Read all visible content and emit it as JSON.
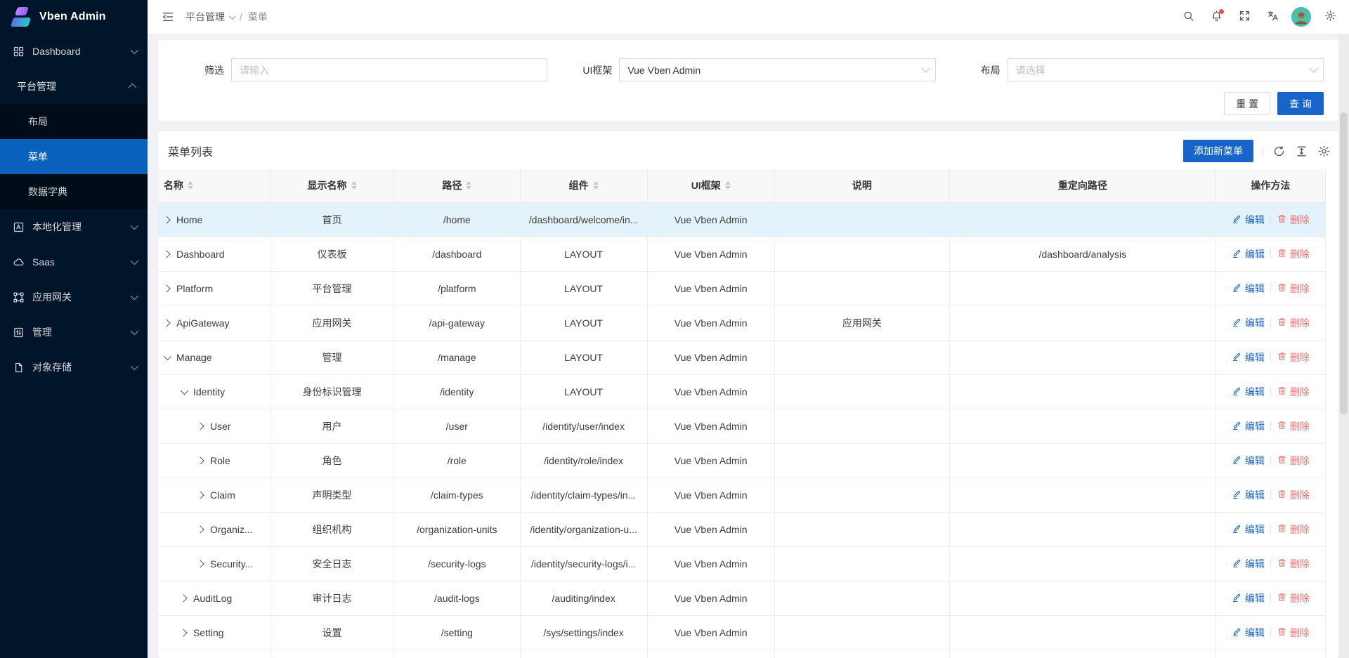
{
  "app": {
    "title": "Vben Admin"
  },
  "colors": {
    "primary": "#1765c9",
    "sidebar_bg": "#001529",
    "sidebar_submenu_bg": "#000c17",
    "sidebar_active": "#0960bd",
    "danger": "#ef6f6f",
    "notification_dot": "#f34d4d",
    "row_highlight": "#e4f2fb",
    "avatar_bg": "#49c0ad"
  },
  "sidebar": {
    "logo_text": "Vben Admin",
    "items": [
      {
        "label": "Dashboard",
        "icon": "grid-icon",
        "chevron": "down",
        "type": "top"
      },
      {
        "label": "平台管理",
        "chevron": "up",
        "type": "group"
      },
      {
        "label": "布局",
        "type": "sub"
      },
      {
        "label": "菜单",
        "type": "sub",
        "active": true
      },
      {
        "label": "数据字典",
        "type": "sub"
      },
      {
        "label": "本地化管理",
        "icon": "locale-icon",
        "chevron": "down",
        "type": "top"
      },
      {
        "label": "Saas",
        "icon": "cloud-icon",
        "chevron": "down",
        "type": "top"
      },
      {
        "label": "应用网关",
        "icon": "gateway-icon",
        "chevron": "down",
        "type": "top"
      },
      {
        "label": "管理",
        "icon": "sliders-icon",
        "chevron": "down",
        "type": "top"
      },
      {
        "label": "对象存储",
        "icon": "file-icon",
        "chevron": "down",
        "type": "top"
      }
    ]
  },
  "header": {
    "breadcrumb": [
      {
        "label": "平台管理",
        "caret": true
      },
      {
        "label": "菜单"
      }
    ],
    "separator": "/",
    "icons": [
      "search-icon",
      "bell-icon",
      "fullscreen-icon",
      "translate-icon",
      "avatar",
      "gear-icon"
    ],
    "notification_dot": true
  },
  "filter": {
    "fields": [
      {
        "label": "筛选",
        "type": "input",
        "value": "",
        "placeholder": "请输入"
      },
      {
        "label": "UI框架",
        "type": "select",
        "value": "Vue Vben Admin",
        "placeholder": ""
      },
      {
        "label": "布局",
        "type": "select",
        "value": "",
        "placeholder": "请选择"
      }
    ],
    "reset_label": "重 置",
    "search_label": "查 询"
  },
  "table": {
    "title": "菜单列表",
    "add_button_label": "添加新菜单",
    "toolbar_icons": [
      "refresh-icon",
      "row-height-icon",
      "gear-icon"
    ],
    "edit_label": "编辑",
    "delete_label": "删除",
    "columns": [
      {
        "label": "名称",
        "sortable": true
      },
      {
        "label": "显示名称",
        "sortable": true
      },
      {
        "label": "路径",
        "sortable": true
      },
      {
        "label": "组件",
        "sortable": true
      },
      {
        "label": "UI框架",
        "sortable": true
      },
      {
        "label": "说明",
        "sortable": false
      },
      {
        "label": "重定向路径",
        "sortable": false
      },
      {
        "label": "操作方法",
        "sortable": false
      }
    ],
    "rows": [
      {
        "name": "Home",
        "level": 0,
        "state": "collapsed",
        "display": "首页",
        "path": "/home",
        "component": "/dashboard/welcome/in...",
        "framework": "Vue Vben Admin",
        "description": "",
        "redirect": "",
        "highlighted": true
      },
      {
        "name": "Dashboard",
        "level": 0,
        "state": "collapsed",
        "display": "仪表板",
        "path": "/dashboard",
        "component": "LAYOUT",
        "framework": "Vue Vben Admin",
        "description": "",
        "redirect": "/dashboard/analysis"
      },
      {
        "name": "Platform",
        "level": 0,
        "state": "collapsed",
        "display": "平台管理",
        "path": "/platform",
        "component": "LAYOUT",
        "framework": "Vue Vben Admin",
        "description": "",
        "redirect": ""
      },
      {
        "name": "ApiGateway",
        "level": 0,
        "state": "collapsed",
        "display": "应用网关",
        "path": "/api-gateway",
        "component": "LAYOUT",
        "framework": "Vue Vben Admin",
        "description": "应用网关",
        "redirect": ""
      },
      {
        "name": "Manage",
        "level": 0,
        "state": "expanded",
        "display": "管理",
        "path": "/manage",
        "component": "LAYOUT",
        "framework": "Vue Vben Admin",
        "description": "",
        "redirect": ""
      },
      {
        "name": "Identity",
        "level": 1,
        "state": "expanded",
        "display": "身份标识管理",
        "path": "/identity",
        "component": "LAYOUT",
        "framework": "Vue Vben Admin",
        "description": "",
        "redirect": ""
      },
      {
        "name": "User",
        "level": 2,
        "state": "collapsed",
        "display": "用户",
        "path": "/user",
        "component": "/identity/user/index",
        "framework": "Vue Vben Admin",
        "description": "",
        "redirect": ""
      },
      {
        "name": "Role",
        "level": 2,
        "state": "collapsed",
        "display": "角色",
        "path": "/role",
        "component": "/identity/role/index",
        "framework": "Vue Vben Admin",
        "description": "",
        "redirect": ""
      },
      {
        "name": "Claim",
        "level": 2,
        "state": "collapsed",
        "display": "声明类型",
        "path": "/claim-types",
        "component": "/identity/claim-types/in...",
        "framework": "Vue Vben Admin",
        "description": "",
        "redirect": ""
      },
      {
        "name": "Organiz...",
        "level": 2,
        "state": "collapsed",
        "display": "组织机构",
        "path": "/organization-units",
        "component": "/identity/organization-u...",
        "framework": "Vue Vben Admin",
        "description": "",
        "redirect": ""
      },
      {
        "name": "Security...",
        "level": 2,
        "state": "collapsed",
        "display": "安全日志",
        "path": "/security-logs",
        "component": "/identity/security-logs/i...",
        "framework": "Vue Vben Admin",
        "description": "",
        "redirect": ""
      },
      {
        "name": "AuditLog",
        "level": 1,
        "state": "collapsed",
        "display": "审计日志",
        "path": "/audit-logs",
        "component": "/auditing/index",
        "framework": "Vue Vben Admin",
        "description": "",
        "redirect": ""
      },
      {
        "name": "Setting",
        "level": 1,
        "state": "collapsed",
        "display": "设置",
        "path": "/setting",
        "component": "/sys/settings/index",
        "framework": "Vue Vben Admin",
        "description": "",
        "redirect": ""
      }
    ]
  }
}
